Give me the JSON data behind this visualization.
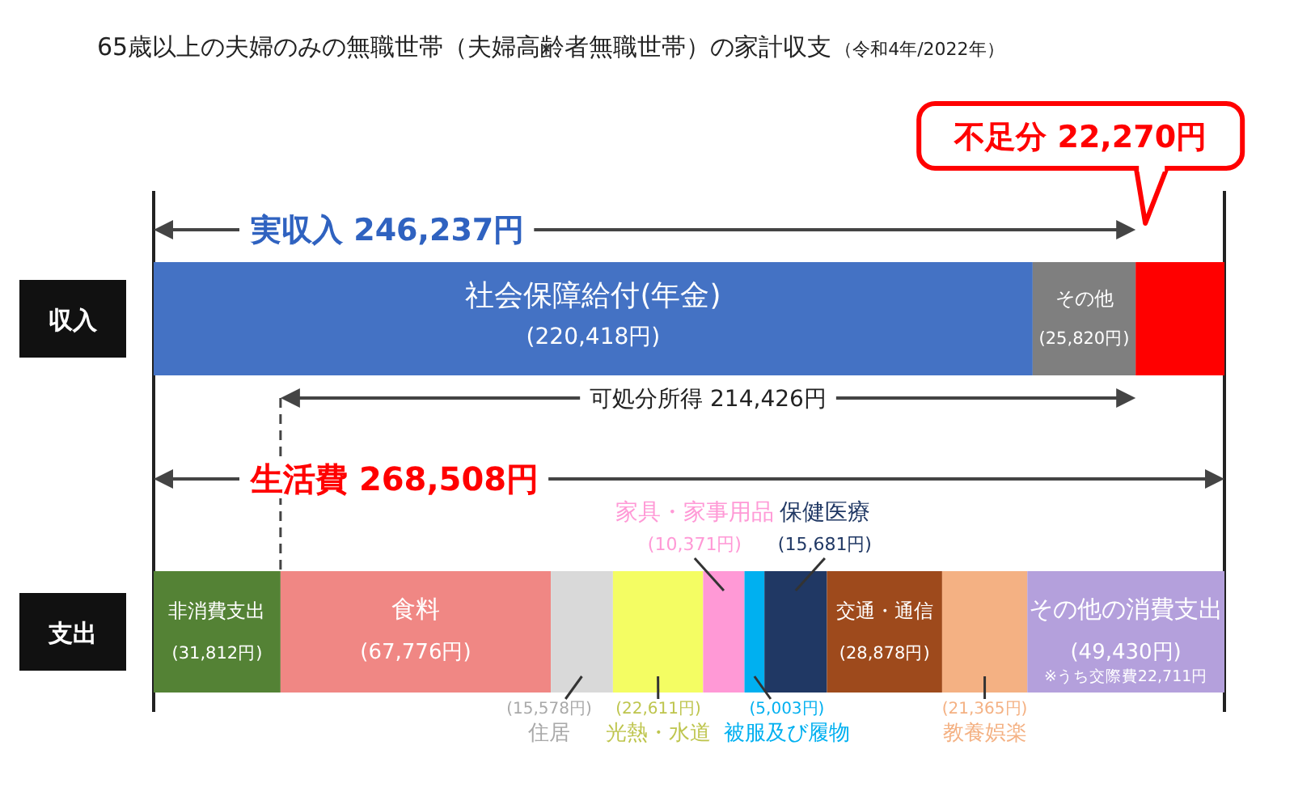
{
  "chart_data": {
    "type": "bar",
    "orientation": "horizontal",
    "stacked": true,
    "title": "65歳以上の夫婦のみの無職世帯（夫婦高齢者無職世帯）の家計収支",
    "subtitle": "（令和4年/2022年）",
    "categories": [
      "収入",
      "支出"
    ],
    "xlim": [
      0,
      268508
    ],
    "tick_labels": "y",
    "series": [
      {
        "name": "社会保障給付(年金)",
        "color": "#4472c4",
        "values": [
          220418,
          null
        ],
        "value_labels": [
          "(220,418円)",
          null
        ]
      },
      {
        "name": "その他",
        "color": "#7f7f7f",
        "values": [
          25820,
          null
        ],
        "value_labels": [
          "(25,820円)",
          null
        ]
      },
      {
        "color": "#ff0000",
        "values": [
          22270,
          null
        ]
      },
      {
        "name": "非消費支出",
        "color": "#548235",
        "values": [
          null,
          31812
        ],
        "value_labels": [
          null,
          "(31,812円)"
        ]
      },
      {
        "name": "食料",
        "color": "#f08784",
        "values": [
          null,
          67776
        ],
        "value_labels": [
          null,
          "(67,776円)"
        ]
      },
      {
        "name": "住居",
        "color": "#d9d9d9",
        "values": [
          null,
          15578
        ],
        "value_labels": [
          null,
          "(15,578円)"
        ]
      },
      {
        "name": "光熱・水道",
        "color": "#f4fd63",
        "values": [
          null,
          22611
        ],
        "value_labels": [
          null,
          "(22,611円)"
        ]
      },
      {
        "name": "家具・家事用品",
        "color": "#ff99d6",
        "values": [
          null,
          10371
        ],
        "value_labels": [
          null,
          "(10,371円)"
        ]
      },
      {
        "name": "被服及び履物",
        "color": "#00b0f0",
        "values": [
          null,
          5003
        ],
        "value_labels": [
          null,
          "(5,003円)"
        ]
      },
      {
        "name": "保健医療",
        "color": "#203864",
        "values": [
          null,
          15681
        ],
        "value_labels": [
          null,
          "(15,681円)"
        ]
      },
      {
        "name": "交通・通信",
        "color": "#9e4a1c",
        "values": [
          null,
          28878
        ],
        "value_labels": [
          null,
          "(28,878円)"
        ]
      },
      {
        "name": "教養娯楽",
        "color": "#f4b183",
        "values": [
          null,
          21365
        ],
        "value_labels": [
          null,
          "(21,365円)"
        ]
      },
      {
        "name": "その他の消費支出",
        "color": "#b4a0dc",
        "values": [
          null,
          49430
        ],
        "value_labels": [
          null,
          "(49,430円)"
        ]
      }
    ],
    "annotations": [
      "実収入 246,237円",
      "可処分所得 214,426円",
      "生活費 268,508円",
      "不足分 22,270円",
      "※うち交際費22,711円"
    ]
  }
}
